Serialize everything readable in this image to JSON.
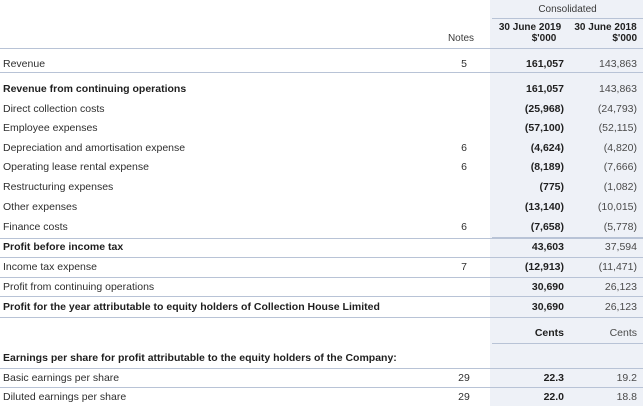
{
  "header": {
    "group": "Consolidated",
    "notes_label": "Notes",
    "col_2019_date": "30 June 2019",
    "col_2019_unit": "$'000",
    "col_2018_date": "30 June 2018",
    "col_2018_unit": "$'000"
  },
  "rows": [
    {
      "label": "Revenue",
      "note": "5",
      "v2019": "161,057",
      "v2018": "143,863"
    },
    {
      "label": "Revenue from continuing operations",
      "note": "",
      "v2019": "161,057",
      "v2018": "143,863"
    },
    {
      "label": "Direct collection costs",
      "note": "",
      "v2019": "(25,968)",
      "v2018": "(24,793)"
    },
    {
      "label": "Employee expenses",
      "note": "",
      "v2019": "(57,100)",
      "v2018": "(52,115)"
    },
    {
      "label": "Depreciation and amortisation expense",
      "note": "6",
      "v2019": "(4,624)",
      "v2018": "(4,820)"
    },
    {
      "label": "Operating lease rental expense",
      "note": "6",
      "v2019": "(8,189)",
      "v2018": "(7,666)"
    },
    {
      "label": "Restructuring expenses",
      "note": "",
      "v2019": "(775)",
      "v2018": "(1,082)"
    },
    {
      "label": "Other expenses",
      "note": "",
      "v2019": "(13,140)",
      "v2018": "(10,015)"
    },
    {
      "label": "Finance costs",
      "note": "6",
      "v2019": "(7,658)",
      "v2018": "(5,778)"
    },
    {
      "label": "Profit before income tax",
      "note": "",
      "v2019": "43,603",
      "v2018": "37,594"
    },
    {
      "label": "Income tax expense",
      "note": "7",
      "v2019": "(12,913)",
      "v2018": "(11,471)"
    },
    {
      "label": "Profit from continuing operations",
      "note": "",
      "v2019": "30,690",
      "v2018": "26,123"
    },
    {
      "label": "Profit for the year attributable to equity holders of Collection House Limited",
      "note": "",
      "v2019": "30,690",
      "v2018": "26,123"
    }
  ],
  "eps": {
    "cents_2019": "Cents",
    "cents_2018": "Cents",
    "heading": "Earnings per share for profit attributable to the equity holders of the Company:",
    "rows": [
      {
        "label": "Basic earnings per share",
        "note": "29",
        "v2019": "22.3",
        "v2018": "19.2"
      },
      {
        "label": "Diluted earnings per share",
        "note": "29",
        "v2019": "22.0",
        "v2018": "18.8"
      }
    ]
  }
}
